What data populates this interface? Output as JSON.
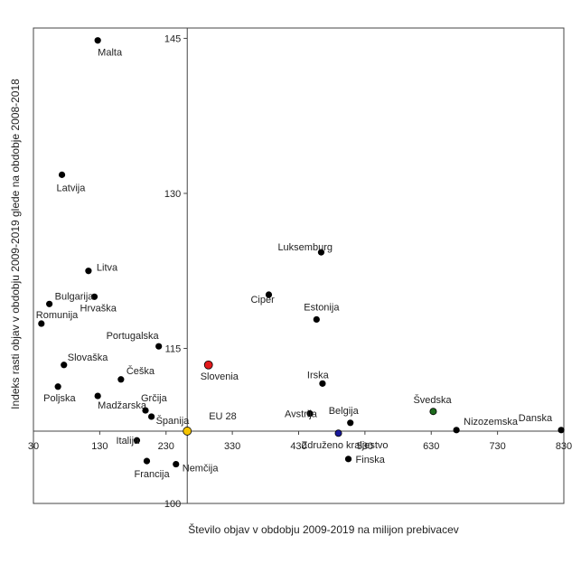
{
  "chart_data": {
    "type": "scatter",
    "xlabel": "Število objav  v obdobju 2009-2019 na milijon prebivacev",
    "ylabel": "Indeks rasti objav  v obdobju  2009-2019 glede na obdobje 2008-2018",
    "xlim": [
      30,
      830
    ],
    "ylim": [
      100,
      146
    ],
    "x_ticks": [
      30,
      130,
      230,
      330,
      430,
      530,
      630,
      730,
      830
    ],
    "x_tick_labels": [
      "30",
      "130",
      "230",
      "330",
      "430",
      "530",
      "630",
      "730",
      "830"
    ],
    "y_ticks": [
      100,
      115,
      130,
      145
    ],
    "y_tick_labels": [
      "100",
      "115",
      "130",
      "145"
    ],
    "crosshair": {
      "x": 262,
      "y": 107
    },
    "grid": false,
    "legend": "none",
    "colors": {
      "default": "#000000",
      "slovenia": "#e31a1c",
      "eu28": "#f5c400",
      "svedska": "#1e6b1e",
      "zdruzeno_kraljestvo": "#1a1a9c"
    },
    "points": [
      {
        "label": "Malta",
        "x": 127,
        "y": 144.8,
        "color": "#000000"
      },
      {
        "label": "Latvija",
        "x": 73,
        "y": 131.8,
        "color": "#000000"
      },
      {
        "label": "Litva",
        "x": 113,
        "y": 122.5,
        "color": "#000000"
      },
      {
        "label": "Bulgarija",
        "x": 54,
        "y": 119.3,
        "color": "#000000"
      },
      {
        "label": "Hrvaška",
        "x": 122,
        "y": 120.0,
        "color": "#000000"
      },
      {
        "label": "Romunija",
        "x": 42,
        "y": 117.4,
        "color": "#000000"
      },
      {
        "label": "Portugalska",
        "x": 219,
        "y": 115.2,
        "color": "#000000"
      },
      {
        "label": "Slovaška",
        "x": 76,
        "y": 113.4,
        "color": "#000000"
      },
      {
        "label": "Poljska",
        "x": 67,
        "y": 111.3,
        "color": "#000000"
      },
      {
        "label": "Češka",
        "x": 162,
        "y": 112.0,
        "color": "#000000"
      },
      {
        "label": "Madžarska",
        "x": 127,
        "y": 110.4,
        "color": "#000000"
      },
      {
        "label": "Grčija",
        "x": 199,
        "y": 109.0,
        "color": "#000000"
      },
      {
        "label": "Španija",
        "x": 208,
        "y": 108.4,
        "color": "#000000"
      },
      {
        "label": "EU 28",
        "x": 262,
        "y": 107.0,
        "color": "#f5c400"
      },
      {
        "label": "Italija",
        "x": 186,
        "y": 106.1,
        "color": "#000000"
      },
      {
        "label": "Francija",
        "x": 201,
        "y": 104.1,
        "color": "#000000"
      },
      {
        "label": "Nemčija",
        "x": 245,
        "y": 103.8,
        "color": "#000000"
      },
      {
        "label": "Slovenia",
        "x": 294,
        "y": 113.4,
        "color": "#e31a1c"
      },
      {
        "label": "Luksemburg",
        "x": 464,
        "y": 124.3,
        "color": "#000000"
      },
      {
        "label": "Ciper",
        "x": 385,
        "y": 120.2,
        "color": "#000000"
      },
      {
        "label": "Estonija",
        "x": 457,
        "y": 117.8,
        "color": "#000000"
      },
      {
        "label": "Irska",
        "x": 466,
        "y": 111.6,
        "color": "#000000"
      },
      {
        "label": "Avstrija",
        "x": 447,
        "y": 108.7,
        "color": "#000000"
      },
      {
        "label": "Belgija",
        "x": 508,
        "y": 107.8,
        "color": "#000000"
      },
      {
        "label": "Združeno kraljestvo",
        "x": 490,
        "y": 106.8,
        "color": "#1a1a9c"
      },
      {
        "label": "Finska",
        "x": 505,
        "y": 104.3,
        "color": "#000000"
      },
      {
        "label": "Švedska",
        "x": 633,
        "y": 108.9,
        "color": "#1e6b1e"
      },
      {
        "label": "Nizozemska",
        "x": 668,
        "y": 107.1,
        "color": "#000000"
      },
      {
        "label": "Danska",
        "x": 826,
        "y": 107.1,
        "color": "#000000"
      }
    ]
  }
}
